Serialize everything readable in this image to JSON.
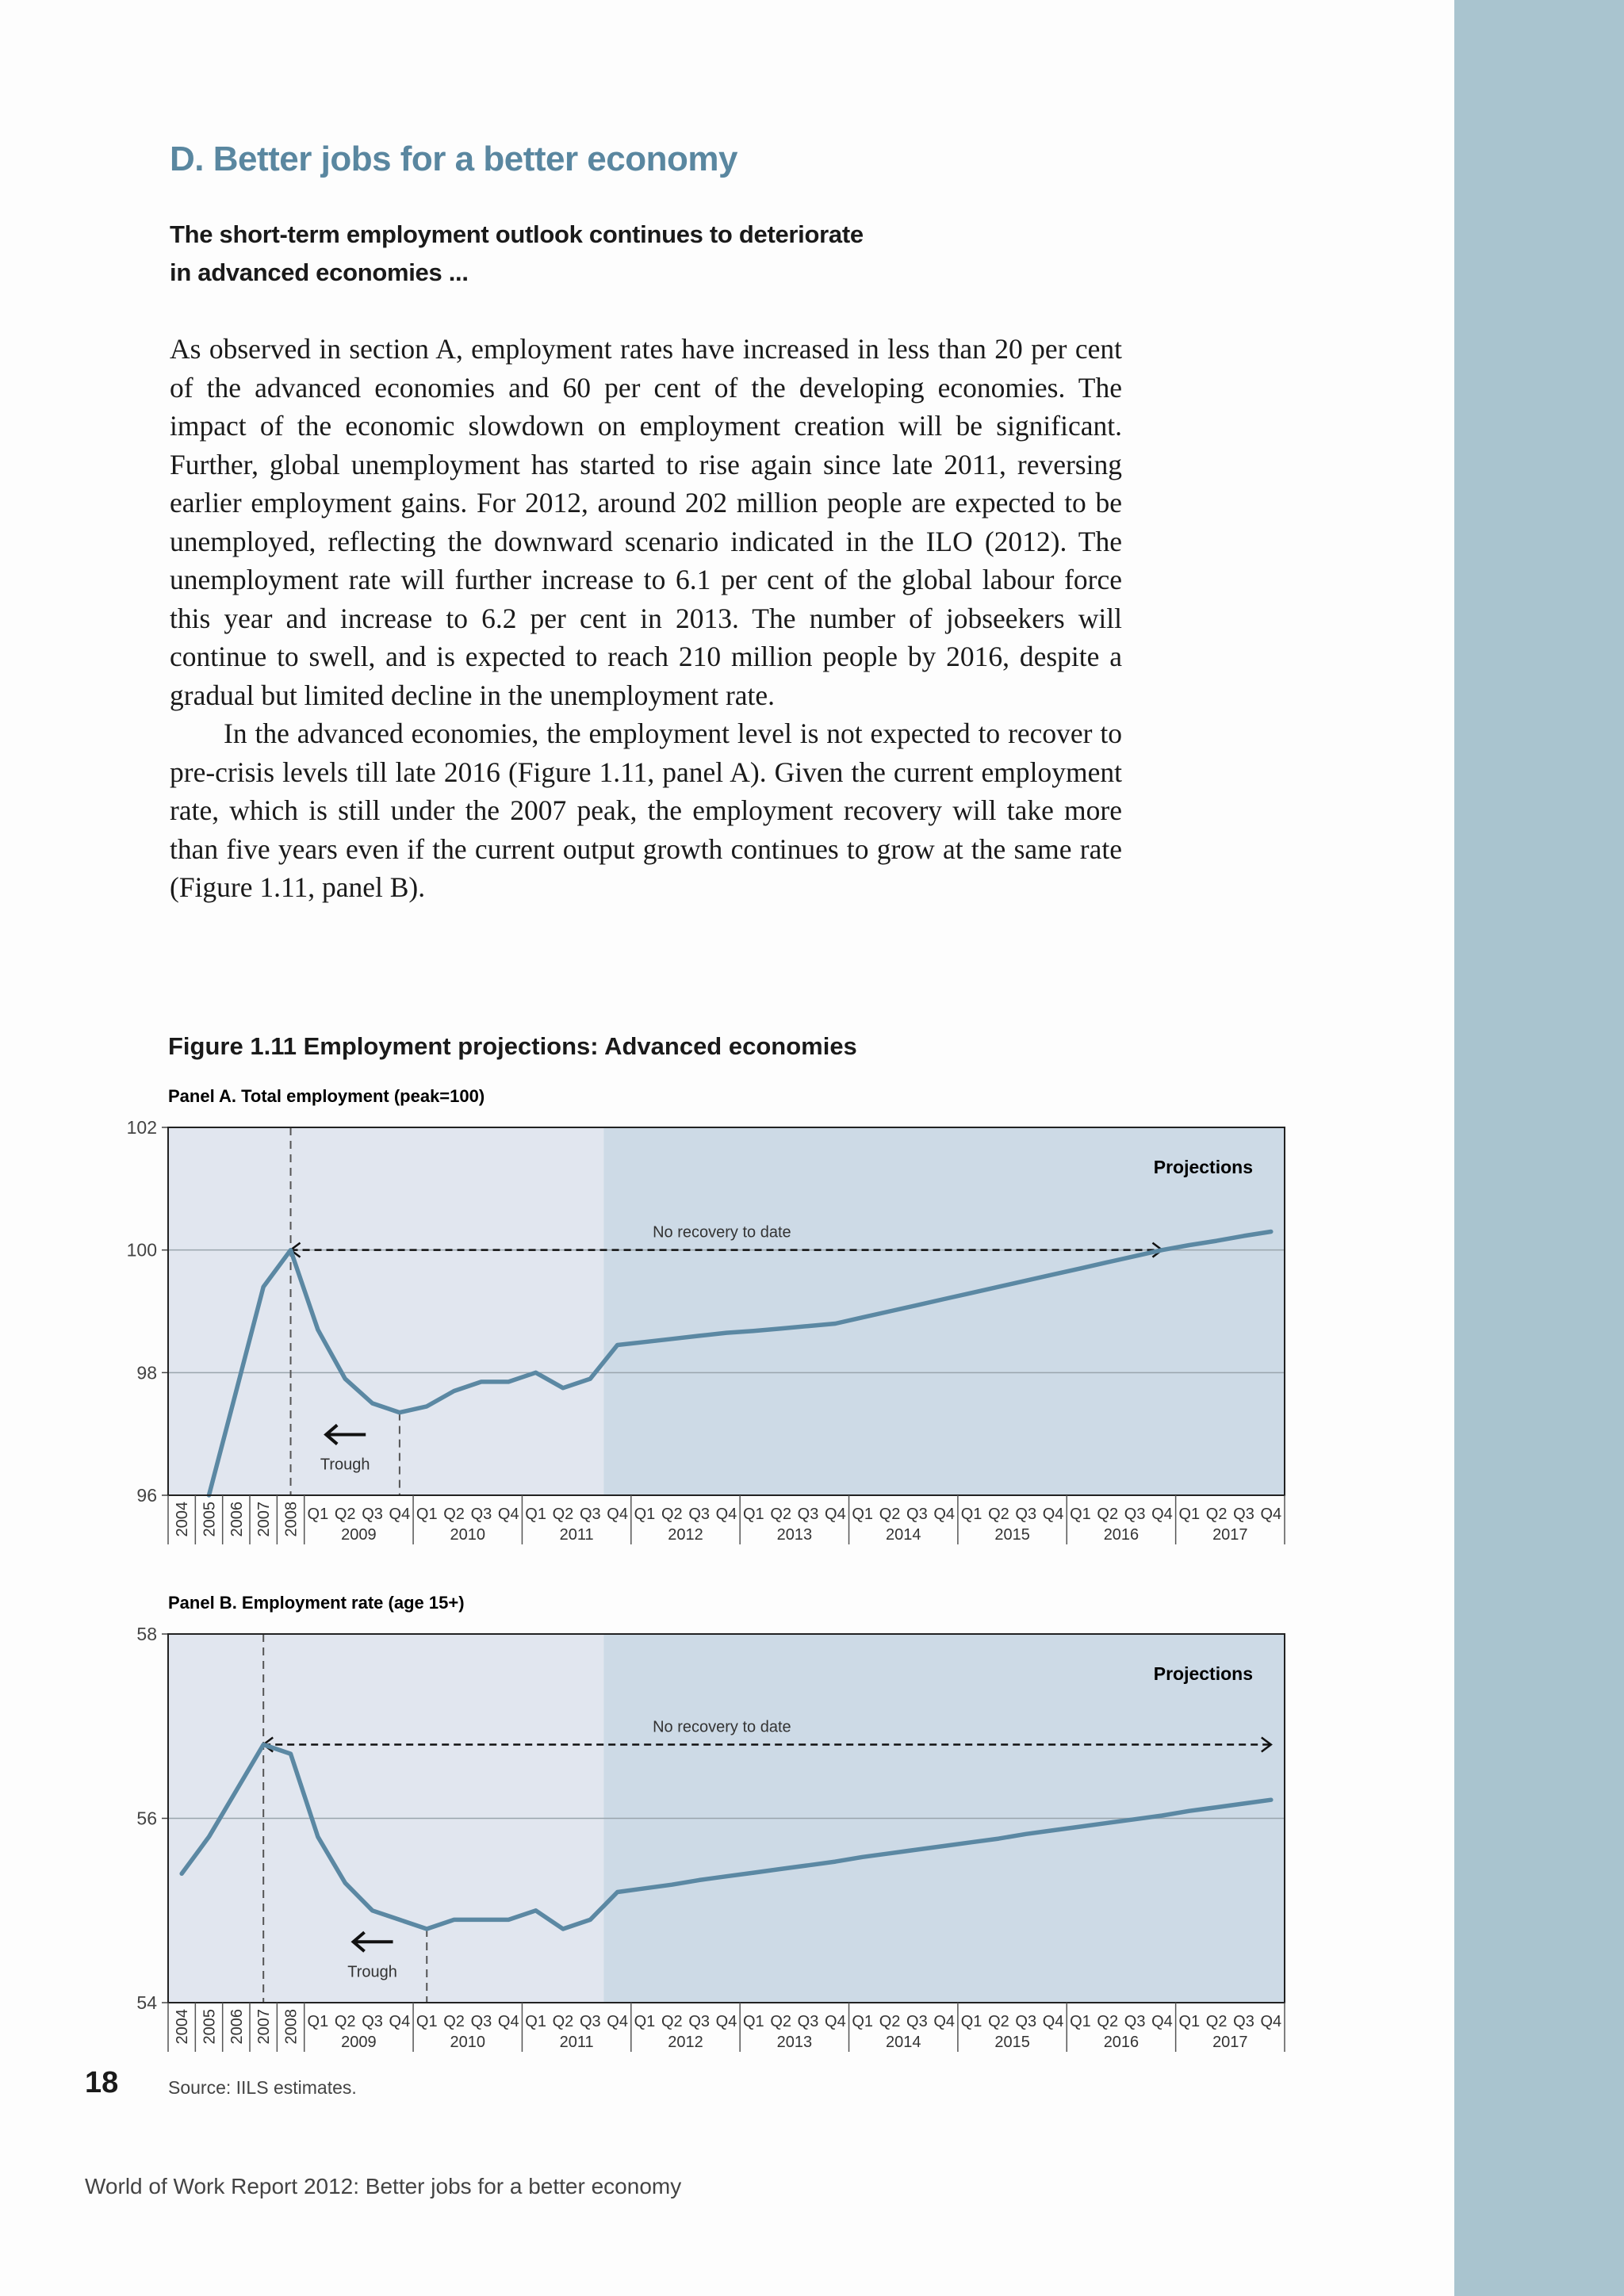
{
  "section_title": "D. Better jobs for a better economy",
  "subtitle_lines": [
    "The short-term employment outlook continues to deteriorate",
    "in advanced economies ..."
  ],
  "paragraphs": [
    "As observed in section A, employment rates have increased in less than 20 per cent of the advanced economies and 60 per cent of the developing economies. The impact of the economic slowdown on employment creation will be significant. Further, global unemployment has started to rise again since late 2011, reversing earlier employment gains. For 2012, around 202 million people are expected to be unemployed, reflecting the downward scenario indicated in the ILO (2012). The unemployment rate will further increase to 6.1 per cent of the global labour force this year and increase to 6.2 per cent in 2013. The number of jobseekers will continue to swell, and is expected to reach 210 million people by 2016, despite a gradual but limited decline in the unemployment rate.",
    "In the advanced economies, the employment level is not expected to recover to pre-crisis levels till late 2016 (Figure 1.11, panel A). Given the current employment rate, which is still under the 2007 peak, the employment recovery will take more than five years even if the current output growth continues to grow at the same rate (Figure 1.11, panel B)."
  ],
  "figure_title": "Figure 1.11  Employment projections: Advanced economies",
  "chart_data": [
    {
      "type": "line",
      "title": "Panel A. Total employment (peak=100)",
      "categories": [
        "2004",
        "2005",
        "2006",
        "2007",
        "2008",
        "Q1",
        "Q2",
        "Q3",
        "Q4",
        "Q1",
        "Q2",
        "Q3",
        "Q4",
        "Q1",
        "Q2",
        "Q3",
        "Q4",
        "Q1",
        "Q2",
        "Q3",
        "Q4",
        "Q1",
        "Q2",
        "Q3",
        "Q4",
        "Q1",
        "Q2",
        "Q3",
        "Q4",
        "Q1",
        "Q2",
        "Q3",
        "Q4",
        "Q1",
        "Q2",
        "Q3",
        "Q4",
        "Q1",
        "Q2",
        "Q3",
        "Q4"
      ],
      "year_groups": [
        "2009",
        "2010",
        "2011",
        "2012",
        "2013",
        "2014",
        "2015",
        "2016",
        "2017"
      ],
      "values": [
        null,
        96,
        97.7,
        99.4,
        100,
        98.7,
        97.9,
        97.5,
        97.35,
        97.45,
        97.7,
        97.85,
        97.85,
        98,
        97.75,
        97.9,
        98.45,
        98.5,
        98.55,
        98.6,
        98.65,
        98.68,
        98.72,
        98.76,
        98.8,
        98.9,
        99,
        99.1,
        99.2,
        99.3,
        99.4,
        99.5,
        99.6,
        99.7,
        99.8,
        99.9,
        100,
        100.08,
        100.15,
        100.23,
        100.3
      ],
      "color": "#5b88a3",
      "ylim": [
        96,
        102
      ],
      "yticks": [
        96,
        98,
        100,
        102
      ],
      "grid": true,
      "projection": {
        "label": "Projections",
        "start": 16
      },
      "arrow": {
        "label": "No recovery to date",
        "from": 4,
        "to": 36,
        "value": 100
      },
      "peak_index": 4,
      "trough": {
        "label": "Trough",
        "index": 8
      }
    },
    {
      "type": "line",
      "title": "Panel B. Employment rate (age 15+)",
      "categories": [
        "2004",
        "2005",
        "2006",
        "2007",
        "2008",
        "Q1",
        "Q2",
        "Q3",
        "Q4",
        "Q1",
        "Q2",
        "Q3",
        "Q4",
        "Q1",
        "Q2",
        "Q3",
        "Q4",
        "Q1",
        "Q2",
        "Q3",
        "Q4",
        "Q1",
        "Q2",
        "Q3",
        "Q4",
        "Q1",
        "Q2",
        "Q3",
        "Q4",
        "Q1",
        "Q2",
        "Q3",
        "Q4",
        "Q1",
        "Q2",
        "Q3",
        "Q4",
        "Q1",
        "Q2",
        "Q3",
        "Q4"
      ],
      "year_groups": [
        "2009",
        "2010",
        "2011",
        "2012",
        "2013",
        "2014",
        "2015",
        "2016",
        "2017"
      ],
      "values": [
        55.4,
        55.8,
        56.3,
        56.8,
        56.7,
        55.8,
        55.3,
        55.0,
        54.9,
        54.8,
        54.9,
        54.9,
        54.9,
        55.0,
        54.8,
        54.9,
        55.2,
        55.24,
        55.28,
        55.33,
        55.37,
        55.41,
        55.45,
        55.49,
        55.53,
        55.58,
        55.62,
        55.66,
        55.7,
        55.74,
        55.78,
        55.83,
        55.87,
        55.91,
        55.95,
        55.99,
        56.03,
        56.08,
        56.12,
        56.16,
        56.2
      ],
      "color": "#5b88a3",
      "ylim": [
        54,
        58
      ],
      "yticks": [
        54,
        56,
        58
      ],
      "grid": true,
      "projection": {
        "label": "Projections",
        "start": 16
      },
      "arrow": {
        "label": "No recovery to date",
        "from": 3,
        "to": 40,
        "value": 56.8
      },
      "peak_index": 3,
      "trough": {
        "label": "Trough",
        "index": 9
      }
    }
  ],
  "source": "Source: IILS estimates.",
  "page_number": "18",
  "footer": "World of Work Report 2012: Better jobs for a better economy"
}
